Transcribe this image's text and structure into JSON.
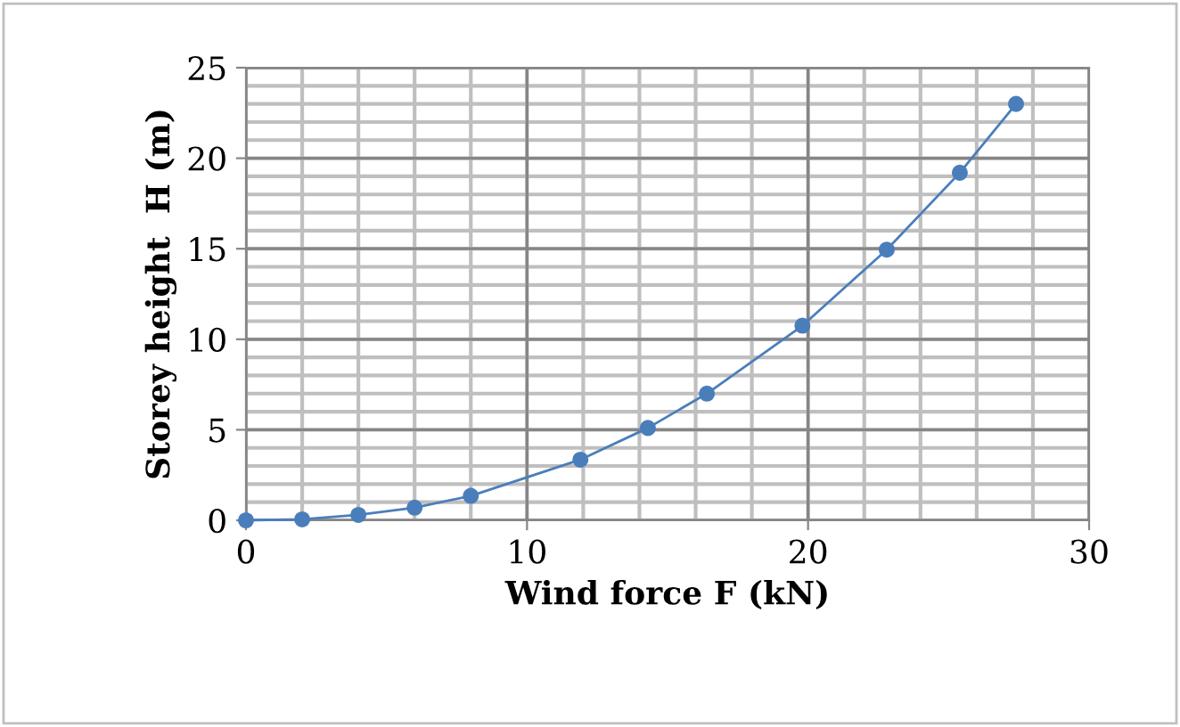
{
  "chart_data": {
    "type": "line",
    "xlabel": "Wind force F (kN)",
    "ylabel": "Storey height  H (m)",
    "x": [
      0,
      2,
      4,
      6,
      8,
      11.9,
      14.3,
      16.4,
      19.8,
      22.8,
      25.4,
      27.4
    ],
    "series": [
      {
        "color": "#4a7ebb",
        "values": [
          0,
          0.05,
          0.3,
          0.7,
          1.35,
          3.35,
          5.1,
          7.0,
          10.75,
          14.95,
          19.2,
          23.0
        ]
      }
    ],
    "xlim": [
      0,
      30
    ],
    "xticks": [
      0,
      10,
      20,
      30
    ],
    "ylim": [
      0,
      25
    ],
    "yticks": [
      0,
      5,
      10,
      15,
      20,
      25
    ],
    "grid": true,
    "marker": "circle",
    "line_style": "solid",
    "legend": false
  }
}
